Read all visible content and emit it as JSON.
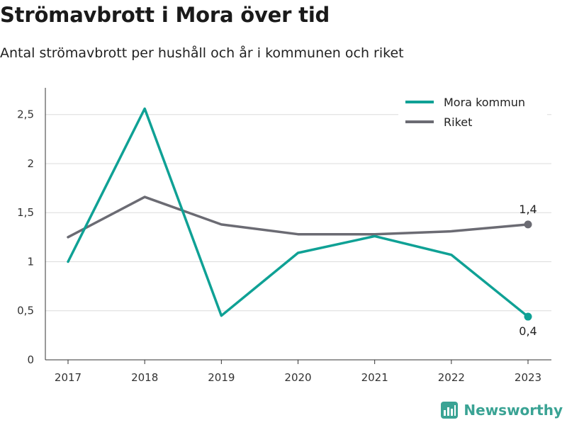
{
  "header": {
    "title": "Strömavbrott i Mora över tid",
    "subtitle": "Antal strömavbrott per hushåll och år i kommunen och riket"
  },
  "brand": {
    "name": "Newsworthy",
    "icon": "newsworthy-logo-icon",
    "color": "#3aa394"
  },
  "chart_data": {
    "type": "line",
    "title": "Strömavbrott i Mora över tid",
    "subtitle": "Antal strömavbrott per hushåll och år i kommunen och riket",
    "xlabel": "",
    "ylabel": "",
    "categories": [
      "2017",
      "2018",
      "2019",
      "2020",
      "2021",
      "2022",
      "2023"
    ],
    "ylim": [
      0,
      2.7
    ],
    "yticks": [
      0,
      0.5,
      1,
      1.5,
      2,
      2.5
    ],
    "ytick_labels": [
      "0",
      "0,5",
      "1",
      "1,5",
      "2",
      "2,5"
    ],
    "grid": true,
    "legend_position": "top-right",
    "series": [
      {
        "name": "Mora kommun",
        "color": "#0fa195",
        "values": [
          1.0,
          2.56,
          0.45,
          1.09,
          1.26,
          1.07,
          0.44
        ],
        "end_label": "0,4"
      },
      {
        "name": "Riket",
        "color": "#6b6b73",
        "values": [
          1.25,
          1.66,
          1.38,
          1.28,
          1.28,
          1.31,
          1.38
        ],
        "end_label": "1,4"
      }
    ]
  }
}
